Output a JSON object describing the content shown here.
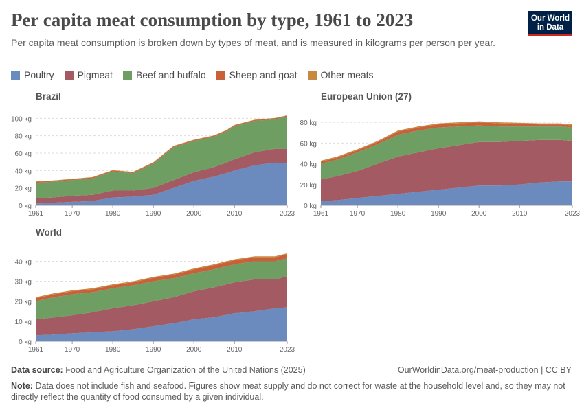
{
  "header": {
    "title": "Per capita meat consumption by type, 1961 to 2023",
    "subtitle": "Per capita meat consumption is broken down by types of meat, and is measured in kilograms per person per year.",
    "logo_line1": "Our World",
    "logo_line2": "in Data"
  },
  "colors": {
    "Poultry": "#6b8bbe",
    "Pigmeat": "#a35a62",
    "Beef and buffalo": "#6f9e63",
    "Sheep and goat": "#c8603a",
    "Other meats": "#c9883f"
  },
  "footer": {
    "source_label": "Data source:",
    "source_text": "Food and Agriculture Organization of the United Nations (2025)",
    "url": "OurWorldinData.org/meat-production | CC BY",
    "note_label": "Note:",
    "note_text": "Data does not include fish and seafood. Figures show meat supply and do not correct for waste at the household level and, so they may not directly reflect the quantity of food consumed by a given individual."
  },
  "chart_data": [
    {
      "type": "area",
      "stacked": true,
      "title": "Brazil",
      "ylim": [
        0,
        105
      ],
      "yticks": [
        0,
        20,
        40,
        60,
        80,
        100
      ],
      "ytick_labels": [
        "0 kg",
        "20 kg",
        "40 kg",
        "60 kg",
        "80 kg",
        "100 kg"
      ],
      "xticks": [
        1961,
        1970,
        1980,
        1990,
        2000,
        2010,
        2023
      ],
      "x": [
        1961,
        1965,
        1970,
        1975,
        1980,
        1985,
        1990,
        1995,
        2000,
        2005,
        2008,
        2010,
        2015,
        2020,
        2023
      ],
      "series": [
        {
          "name": "Poultry",
          "values": [
            2,
            3,
            4,
            5,
            9,
            10,
            12,
            20,
            28,
            33,
            37,
            40,
            46,
            49,
            48
          ]
        },
        {
          "name": "Pigmeat",
          "values": [
            6,
            6,
            7,
            7,
            8,
            7,
            8,
            9,
            10,
            11,
            12,
            13,
            15,
            16,
            17
          ]
        },
        {
          "name": "Beef and buffalo",
          "values": [
            18,
            18,
            18,
            19,
            22,
            20,
            28,
            38,
            36,
            35,
            36,
            38,
            36,
            34,
            37
          ]
        },
        {
          "name": "Sheep and goat",
          "values": [
            1,
            1,
            1,
            1,
            1,
            1,
            1,
            1,
            1,
            1,
            1,
            1,
            1,
            1,
            1
          ]
        },
        {
          "name": "Other meats",
          "values": [
            0.5,
            0.5,
            0.5,
            0.5,
            0.5,
            0.5,
            0.5,
            0.5,
            0.5,
            0.5,
            0.5,
            0.5,
            0.5,
            0.5,
            0.5
          ]
        }
      ]
    },
    {
      "type": "area",
      "stacked": true,
      "title": "European Union (27)",
      "ylim": [
        0,
        88
      ],
      "yticks": [
        0,
        20,
        40,
        60,
        80
      ],
      "ytick_labels": [
        "0 kg",
        "20 kg",
        "40 kg",
        "60 kg",
        "80 kg"
      ],
      "xticks": [
        1961,
        1970,
        1980,
        1990,
        2000,
        2010,
        2023
      ],
      "x": [
        1961,
        1965,
        1970,
        1975,
        1980,
        1985,
        1990,
        1995,
        2000,
        2005,
        2010,
        2015,
        2020,
        2023
      ],
      "series": [
        {
          "name": "Poultry",
          "values": [
            4,
            5,
            7,
            9,
            11,
            13,
            15,
            17,
            19,
            19,
            20,
            22,
            23,
            23
          ]
        },
        {
          "name": "Pigmeat",
          "values": [
            21,
            23,
            26,
            31,
            36,
            38,
            40,
            41,
            42,
            42,
            42,
            41,
            40,
            39
          ]
        },
        {
          "name": "Beef and buffalo",
          "values": [
            15,
            16,
            18,
            19,
            21,
            21,
            20,
            18,
            16,
            15,
            14,
            13,
            13,
            13
          ]
        },
        {
          "name": "Sheep and goat",
          "values": [
            2,
            2,
            2,
            2,
            3,
            3,
            3,
            3,
            3,
            3,
            2.5,
            2,
            2,
            2
          ]
        },
        {
          "name": "Other meats",
          "values": [
            1,
            1,
            1,
            1,
            1,
            1,
            1,
            1,
            1,
            1,
            1,
            1,
            1,
            1
          ]
        }
      ]
    },
    {
      "type": "area",
      "stacked": true,
      "title": "World",
      "ylim": [
        0,
        46
      ],
      "yticks": [
        0,
        10,
        20,
        30,
        40
      ],
      "ytick_labels": [
        "0 kg",
        "10 kg",
        "20 kg",
        "30 kg",
        "40 kg"
      ],
      "xticks": [
        1961,
        1970,
        1980,
        1990,
        2000,
        2010,
        2023
      ],
      "x": [
        1961,
        1965,
        1970,
        1975,
        1980,
        1985,
        1990,
        1995,
        2000,
        2005,
        2010,
        2015,
        2020,
        2023
      ],
      "series": [
        {
          "name": "Poultry",
          "values": [
            3,
            3.3,
            4,
            4.5,
            5,
            6,
            7.5,
            9,
            11,
            12,
            14,
            15,
            16.5,
            17
          ]
        },
        {
          "name": "Pigmeat",
          "values": [
            8,
            8.5,
            9,
            10,
            11.5,
            12,
            12.5,
            13,
            14,
            15,
            15.5,
            16,
            14.5,
            15.5
          ]
        },
        {
          "name": "Beef and buffalo",
          "values": [
            9,
            10,
            10.5,
            10,
            10,
            10,
            10,
            9.5,
            9,
            9,
            9,
            9,
            9,
            9
          ]
        },
        {
          "name": "Sheep and goat",
          "values": [
            1.5,
            1.5,
            1.5,
            1.5,
            1.5,
            1.5,
            1.7,
            1.8,
            1.9,
            2,
            2,
            2,
            2,
            2
          ]
        },
        {
          "name": "Other meats",
          "values": [
            0.5,
            0.5,
            0.5,
            0.5,
            0.5,
            0.5,
            0.5,
            0.5,
            0.5,
            0.5,
            0.5,
            0.5,
            0.5,
            0.5
          ]
        }
      ]
    }
  ]
}
